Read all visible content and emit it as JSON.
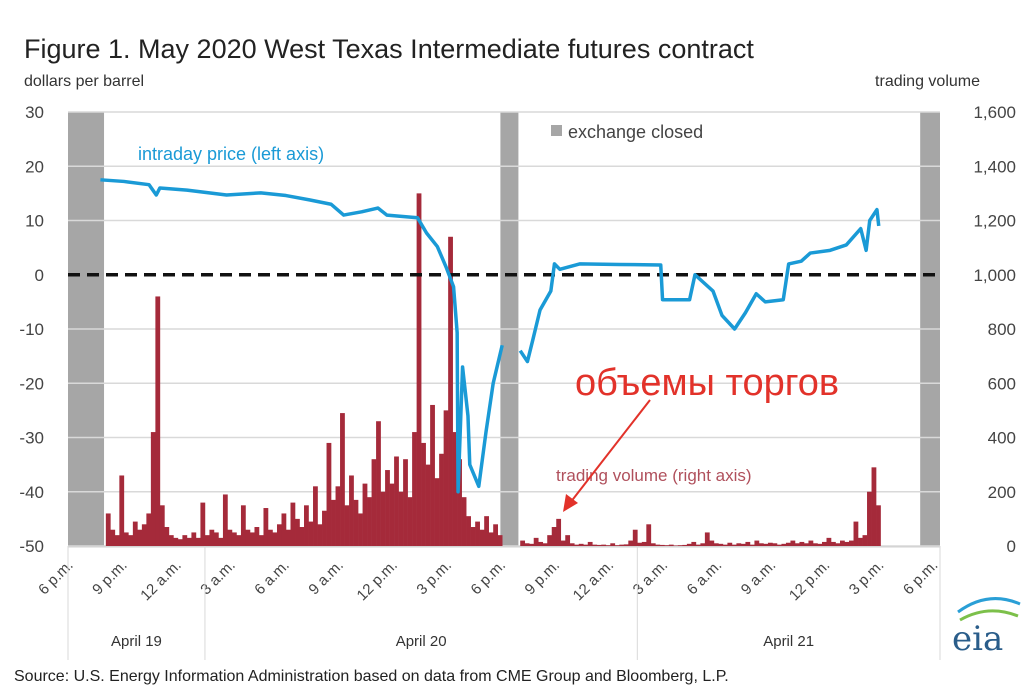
{
  "chart_data": {
    "type": "line+bar",
    "title": "Figure 1. May 2020 West Texas Intermediate futures contract",
    "ylabel_left": "dollars per barrel",
    "ylabel_right": "trading volume",
    "ylim_left": [
      -50,
      30
    ],
    "ylim_right": [
      0,
      1600
    ],
    "yticks_left": [
      "30",
      "20",
      "10",
      "0",
      "-10",
      "-20",
      "-30",
      "-40",
      "-50"
    ],
    "yticks_right": [
      "1,600",
      "1,400",
      "1,200",
      "1,000",
      "800",
      "600",
      "400",
      "200",
      "0"
    ],
    "x_unit": "hours since 6 p.m. April 19",
    "xlim": [
      -0.1,
      48.3
    ],
    "xtick_labels": [
      "6 p.m.",
      "9 p.m.",
      "12 a.m.",
      "3 a.m.",
      "6 a.m.",
      "9 a.m.",
      "12 p.m.",
      "3 p.m.",
      "6 p.m.",
      "9 p.m.",
      "12 a.m.",
      "3 a.m.",
      "6 a.m.",
      "9 a.m.",
      "12 p.m.",
      "3 p.m.",
      "6 p.m."
    ],
    "date_groups": [
      {
        "label": "April 19",
        "from": -0.1,
        "to": 7.5
      },
      {
        "label": "April 20",
        "from": 7.5,
        "to": 31.5
      },
      {
        "label": "April 21",
        "from": 31.5,
        "to": 48.3
      }
    ],
    "grid": true,
    "reference_line": 0,
    "closed_periods": [
      [
        -0.1,
        1.9
      ],
      [
        23.9,
        24.9
      ],
      [
        47.2,
        48.3
      ]
    ],
    "legend": {
      "closed": "exchange closed",
      "price": "intraday price (left axis)",
      "volume": "trading volume (right axis)"
    },
    "colors": {
      "price": "#1a9ad6",
      "volume": "#a52a3a",
      "closed": "#a6a6a6",
      "annotation": "#e2322a"
    },
    "price_series": [
      [
        [
          1.7,
          17.5
        ],
        [
          3.0,
          17.2
        ],
        [
          4.4,
          16.6
        ],
        [
          4.8,
          14.7
        ],
        [
          5.0,
          16.0
        ],
        [
          6.5,
          15.6
        ],
        [
          8.7,
          14.7
        ],
        [
          10.6,
          15.1
        ],
        [
          12.0,
          14.6
        ],
        [
          13.3,
          13.8
        ],
        [
          14.5,
          13.0
        ],
        [
          15.2,
          11.0
        ],
        [
          16.2,
          11.6
        ],
        [
          17.1,
          12.3
        ],
        [
          17.6,
          11.0
        ],
        [
          19.3,
          10.5
        ],
        [
          19.8,
          7.7
        ],
        [
          20.4,
          5.2
        ],
        [
          20.9,
          1.3
        ],
        [
          21.3,
          -2.2
        ],
        [
          21.5,
          -10.7
        ],
        [
          21.55,
          -40
        ],
        [
          21.8,
          -17
        ],
        [
          22.1,
          -26
        ],
        [
          22.2,
          -35
        ],
        [
          22.7,
          -39
        ],
        [
          23.1,
          -29
        ],
        [
          23.5,
          -20
        ],
        [
          24.0,
          -13
        ]
      ],
      [
        [
          25.0,
          -14
        ],
        [
          25.4,
          -16
        ],
        [
          25.7,
          -12
        ],
        [
          26.1,
          -6.5
        ],
        [
          26.7,
          -3
        ],
        [
          26.9,
          2
        ],
        [
          27.2,
          1
        ],
        [
          28.3,
          2
        ],
        [
          30.5,
          1.9
        ],
        [
          32.8,
          1.8
        ],
        [
          32.9,
          -4.6
        ],
        [
          33.6,
          -4.6
        ],
        [
          34.4,
          -4.6
        ],
        [
          34.7,
          0
        ],
        [
          35.7,
          -3
        ],
        [
          36.2,
          -7.5
        ],
        [
          36.9,
          -10
        ],
        [
          37.5,
          -7
        ],
        [
          38.1,
          -3.5
        ],
        [
          38.6,
          -5
        ],
        [
          39.6,
          -4.6
        ],
        [
          39.9,
          2
        ],
        [
          40.6,
          2.5
        ],
        [
          41.1,
          4
        ],
        [
          42.2,
          4.5
        ],
        [
          43.1,
          5.5
        ],
        [
          43.9,
          8.5
        ],
        [
          44.2,
          4.5
        ],
        [
          44.4,
          10
        ],
        [
          44.8,
          12
        ],
        [
          44.9,
          9
        ]
      ]
    ],
    "volume_series": [
      {
        "start": 2.0,
        "step": 0.25,
        "values": [
          120,
          60,
          40,
          260,
          50,
          40,
          90,
          60,
          80,
          120,
          420,
          920,
          150,
          70,
          40,
          30,
          25,
          40,
          30,
          50,
          30,
          160,
          40,
          60,
          50,
          30,
          190,
          60,
          50,
          40,
          150,
          60,
          50,
          70,
          40,
          140,
          60,
          50,
          80,
          120,
          60,
          160,
          100,
          70,
          150,
          90,
          220,
          80,
          130,
          380,
          170,
          220,
          490,
          150,
          260,
          170,
          120,
          230,
          180,
          320,
          460,
          200,
          280,
          230,
          330,
          200,
          320,
          180,
          420,
          1300,
          380,
          300,
          520,
          250,
          340,
          500,
          1140,
          420,
          320,
          180,
          110,
          70,
          90,
          60,
          110,
          50,
          80,
          40
        ]
      },
      {
        "start": 25.0,
        "step": 0.25,
        "values": [
          20,
          10,
          8,
          30,
          15,
          10,
          40,
          70,
          100,
          20,
          40,
          10,
          5,
          8,
          5,
          15,
          5,
          4,
          5,
          3,
          10,
          3,
          5,
          6,
          20,
          60,
          12,
          15,
          80,
          10,
          5,
          4,
          3,
          5,
          2,
          3,
          4,
          8,
          15,
          5,
          10,
          50,
          20,
          10,
          8,
          5,
          12,
          5,
          10,
          8,
          15,
          5,
          20,
          10,
          8,
          12,
          10,
          5,
          8,
          12,
          20,
          10,
          15,
          10,
          20,
          10,
          8,
          15,
          30,
          15,
          10,
          20,
          15,
          20,
          90,
          30,
          40,
          200,
          290,
          150
        ]
      }
    ],
    "annotation": "объемы торгов",
    "source": "Source: U.S. Energy Information Administration based on data from CME Group and Bloomberg, L.P.",
    "logo": "eia"
  }
}
